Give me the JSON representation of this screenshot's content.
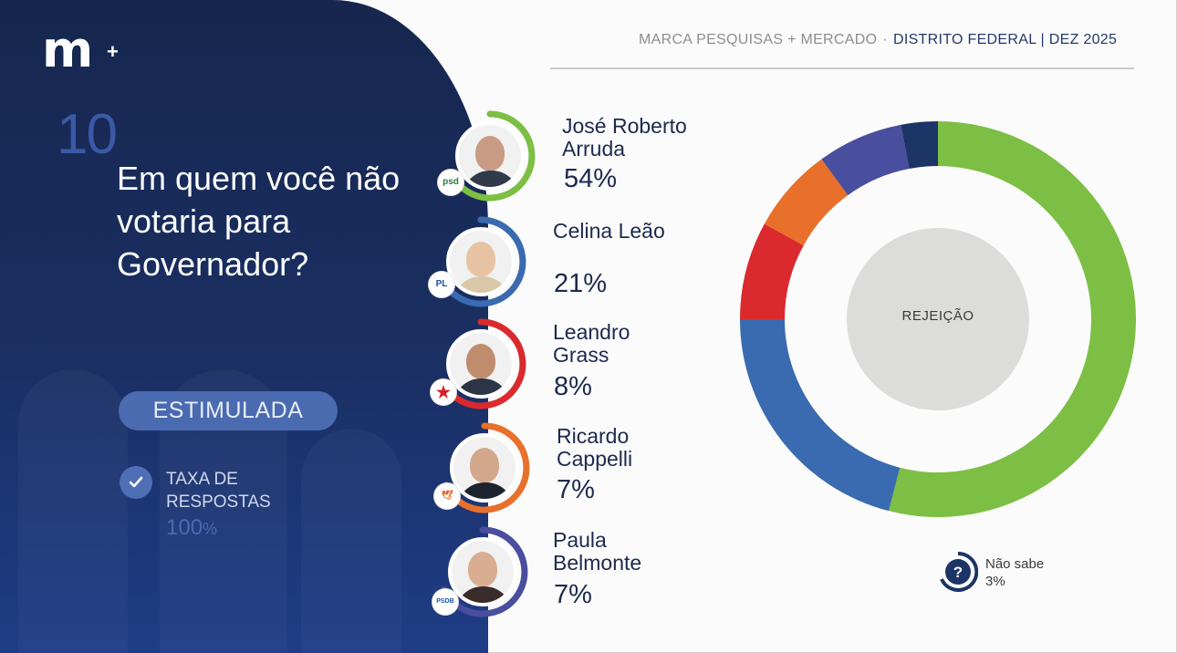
{
  "brand": {
    "logo_text": "m",
    "logo_plus": "+"
  },
  "header": {
    "source": "MARCA PESQUISAS + MERCADO",
    "separator": "·",
    "region": "DISTRITO FEDERAL | DEZ 2025"
  },
  "question": {
    "number": "10",
    "text": "Em quem você não votaria para Governador?"
  },
  "survey_type": "ESTIMULADA",
  "response_rate": {
    "label": "TAXA DE RESPOSTAS",
    "value": "100",
    "unit": "%"
  },
  "candidates": [
    {
      "name": "José Roberto Arruda",
      "pct": "54%",
      "party": "psd",
      "color": "#7cbf44",
      "party_color": "#2b7a3d",
      "skin": "#c99b84",
      "shirt": "#2f3a4a"
    },
    {
      "name": "Celina Leão",
      "pct": "21%",
      "party": "PL",
      "color": "#3a6aaf",
      "party_color": "#1f4ea0",
      "skin": "#e7c3a3",
      "shirt": "#d9c7a7"
    },
    {
      "name": "Leandro Grass",
      "pct": "8%",
      "party": "★",
      "color": "#da2a2e",
      "party_color": "#d72027",
      "skin": "#c08c6e",
      "shirt": "#2c3445"
    },
    {
      "name": "Ricardo Cappelli",
      "pct": "7%",
      "party": "🕊",
      "color": "#e8702a",
      "party_color": "#e55a1b",
      "skin": "#d2a78c",
      "shirt": "#1d2430"
    },
    {
      "name": "Paula Belmonte",
      "pct": "7%",
      "party": "PSDB",
      "color": "#4a4e9e",
      "party_color": "#1a56a8",
      "skin": "#d9ad92",
      "shirt": "#3b2c2c"
    }
  ],
  "chart_data": {
    "type": "pie",
    "center_label": "REJEIÇÃO",
    "categories": [
      "José Roberto Arruda",
      "Celina Leão",
      "Leandro Grass",
      "Ricardo Cappelli",
      "Paula Belmonte",
      "Não sabe"
    ],
    "values": [
      54,
      21,
      8,
      7,
      7,
      3
    ],
    "colors": [
      "#7cbf44",
      "#3a6aaf",
      "#da2a2e",
      "#e8702a",
      "#4a4e9e",
      "#1c3466"
    ]
  },
  "dont_know": {
    "label": "Não sabe",
    "pct": "3%",
    "icon": "question-icon"
  }
}
